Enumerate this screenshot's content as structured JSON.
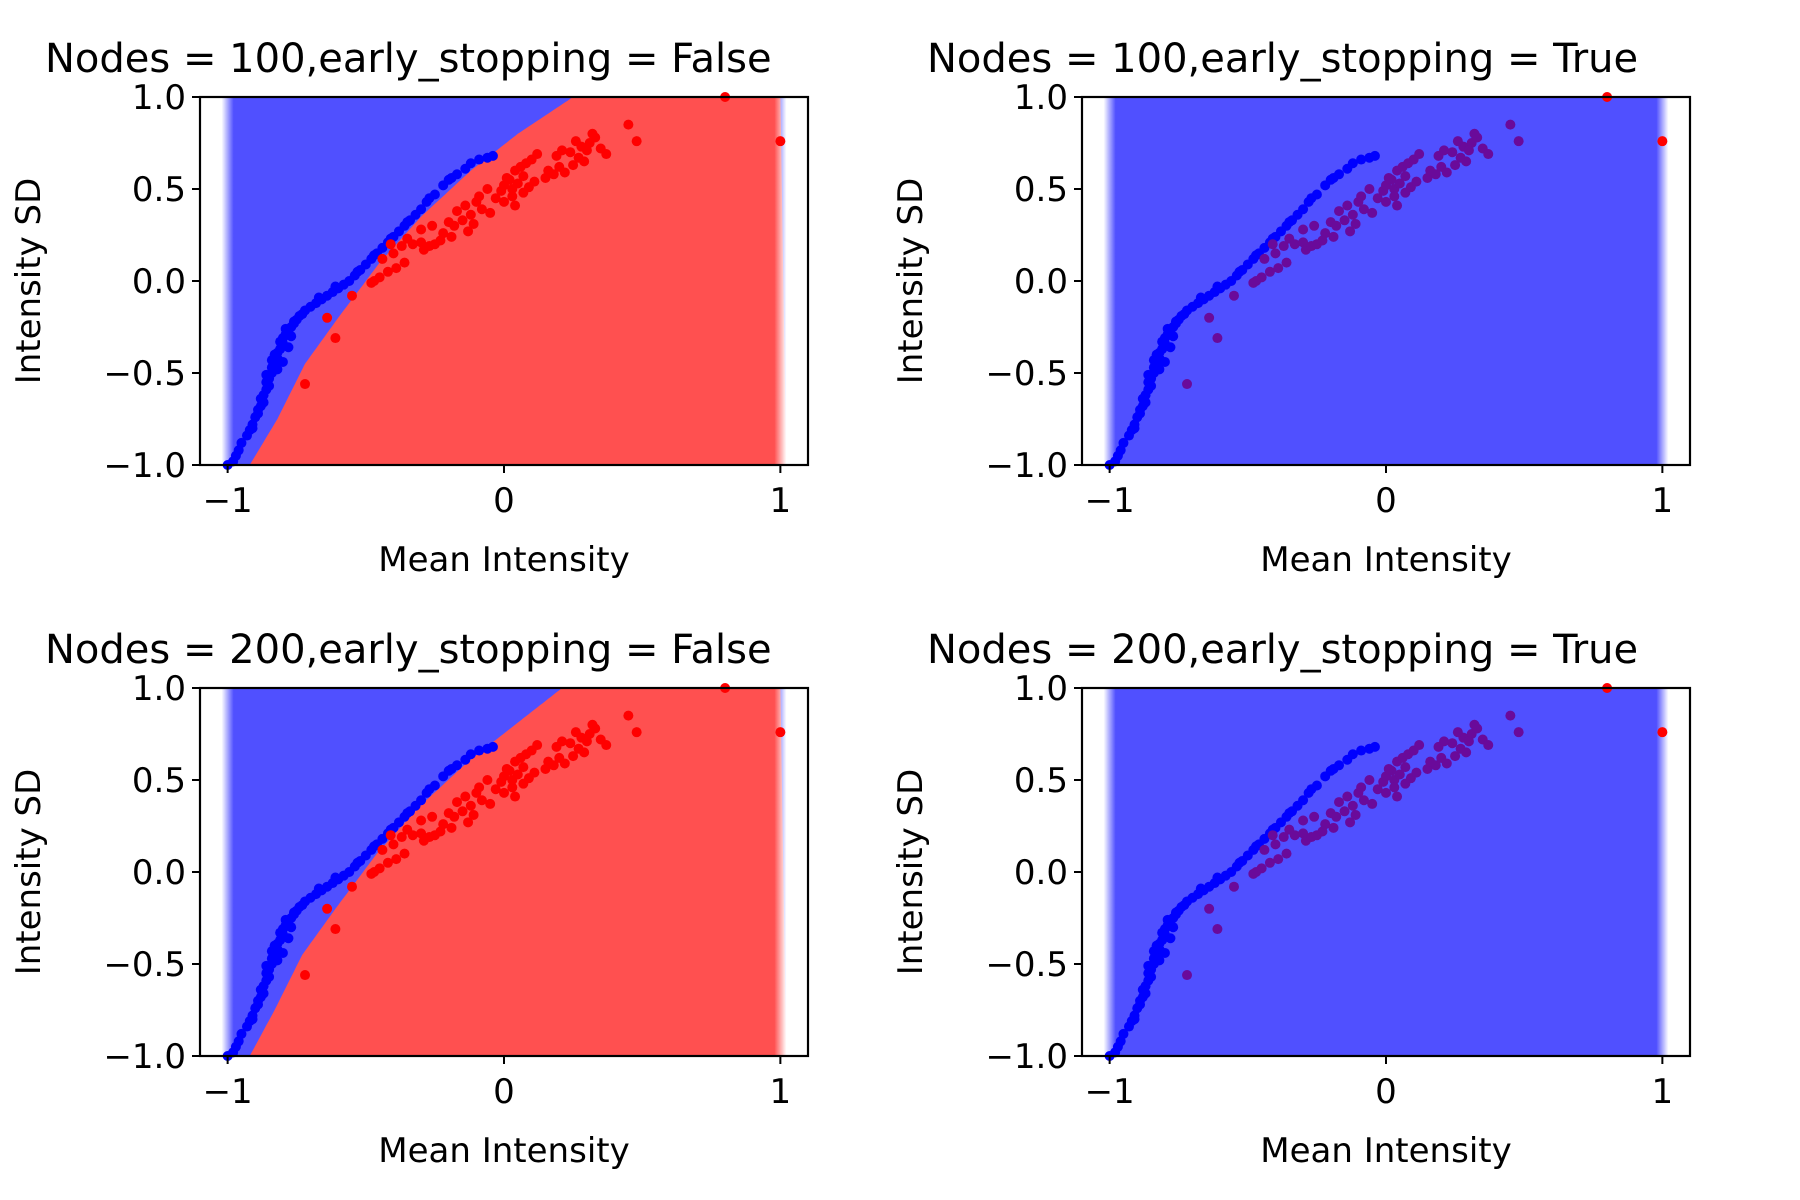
{
  "chart_data": [
    {
      "type": "scatter",
      "title": "Nodes = 100,early_stopping = False",
      "xlabel": "Mean Intensity",
      "ylabel": "Intensity SD",
      "xlim": [
        -1.1,
        1.1
      ],
      "ylim": [
        -1.0,
        1.0
      ],
      "xticks": [
        -1,
        0,
        1
      ],
      "yticks": [
        -1.0,
        -0.5,
        0.0,
        0.5,
        1.0
      ],
      "xtick_labels": [
        "−1",
        "0",
        "1"
      ],
      "ytick_labels": [
        "−1.0",
        "−0.5",
        "0.0",
        "0.5",
        "1.0"
      ],
      "background": "decision-region",
      "region_x_range": [
        -1.0,
        1.0
      ],
      "boundary": [
        [
          -0.92,
          -1.0
        ],
        [
          -0.82,
          -0.75
        ],
        [
          -0.72,
          -0.45
        ],
        [
          -0.6,
          -0.2
        ],
        [
          -0.45,
          0.1
        ],
        [
          -0.3,
          0.35
        ],
        [
          -0.12,
          0.6
        ],
        [
          0.05,
          0.8
        ],
        [
          0.25,
          1.0
        ]
      ],
      "region_colors": {
        "upper": "#5050ff",
        "lower": "#ff5050"
      },
      "point_colors": {
        "upper": "#0000ff",
        "lower": "#ff0000"
      },
      "region_class_opacity": 1
    },
    {
      "type": "scatter",
      "title": "Nodes = 100,early_stopping = True",
      "xlabel": "Mean Intensity",
      "ylabel": "Intensity SD",
      "xlim": [
        -1.1,
        1.1
      ],
      "ylim": [
        -1.0,
        1.0
      ],
      "xticks": [
        -1,
        0,
        1
      ],
      "yticks": [
        -1.0,
        -0.5,
        0.0,
        0.5,
        1.0
      ],
      "xtick_labels": [
        "−1",
        "0",
        "1"
      ],
      "ytick_labels": [
        "−1.0",
        "−0.5",
        "0.0",
        "0.5",
        "1.0"
      ],
      "background": "single-class",
      "region_x_range": [
        -1.0,
        1.0
      ],
      "region_colors": {
        "upper": "#5050ff"
      },
      "point_colors": {
        "upper": "#0000ff",
        "lower": "#ff0000",
        "lower_inside": "#6a0a9a"
      }
    },
    {
      "type": "scatter",
      "title": "Nodes = 200,early_stopping = False",
      "xlabel": "Mean Intensity",
      "ylabel": "Intensity SD",
      "xlim": [
        -1.1,
        1.1
      ],
      "ylim": [
        -1.0,
        1.0
      ],
      "xticks": [
        -1,
        0,
        1
      ],
      "yticks": [
        -1.0,
        -0.5,
        0.0,
        0.5,
        1.0
      ],
      "xtick_labels": [
        "−1",
        "0",
        "1"
      ],
      "ytick_labels": [
        "−1.0",
        "−0.5",
        "0.0",
        "0.5",
        "1.0"
      ],
      "background": "decision-region",
      "region_x_range": [
        -1.0,
        1.0
      ],
      "boundary": [
        [
          -0.92,
          -1.0
        ],
        [
          -0.83,
          -0.75
        ],
        [
          -0.73,
          -0.45
        ],
        [
          -0.61,
          -0.2
        ],
        [
          -0.46,
          0.1
        ],
        [
          -0.31,
          0.35
        ],
        [
          -0.13,
          0.6
        ],
        [
          0.04,
          0.8
        ],
        [
          0.21,
          1.0
        ]
      ],
      "region_colors": {
        "upper": "#5050ff",
        "lower": "#ff5050"
      },
      "point_colors": {
        "upper": "#0000ff",
        "lower": "#ff0000"
      }
    },
    {
      "type": "scatter",
      "title": "Nodes = 200,early_stopping = True",
      "xlabel": "Mean Intensity",
      "ylabel": "Intensity SD",
      "xlim": [
        -1.1,
        1.1
      ],
      "ylim": [
        -1.0,
        1.0
      ],
      "xticks": [
        -1,
        0,
        1
      ],
      "yticks": [
        -1.0,
        -0.5,
        0.0,
        0.5,
        1.0
      ],
      "xtick_labels": [
        "−1",
        "0",
        "1"
      ],
      "ytick_labels": [
        "−1.0",
        "−0.5",
        "0.0",
        "0.5",
        "1.0"
      ],
      "background": "single-class",
      "region_x_range": [
        -1.0,
        1.0
      ],
      "region_colors": {
        "upper": "#5050ff"
      },
      "point_colors": {
        "upper": "#0000ff",
        "lower": "#ff0000",
        "lower_inside": "#6a0a9a"
      }
    }
  ],
  "points": {
    "upper": [
      [
        -1.0,
        -1.0
      ],
      [
        -0.98,
        -0.98
      ],
      [
        -0.97,
        -0.95
      ],
      [
        -0.96,
        -0.92
      ],
      [
        -0.95,
        -0.88
      ],
      [
        -0.93,
        -0.84
      ],
      [
        -0.92,
        -0.81
      ],
      [
        -0.91,
        -0.78
      ],
      [
        -0.9,
        -0.74
      ],
      [
        -0.89,
        -0.7
      ],
      [
        -0.88,
        -0.68
      ],
      [
        -0.88,
        -0.64
      ],
      [
        -0.87,
        -0.62
      ],
      [
        -0.86,
        -0.59
      ],
      [
        -0.86,
        -0.55
      ],
      [
        -0.85,
        -0.53
      ],
      [
        -0.84,
        -0.5
      ],
      [
        -0.84,
        -0.47
      ],
      [
        -0.83,
        -0.45
      ],
      [
        -0.82,
        -0.42
      ],
      [
        -0.82,
        -0.39
      ],
      [
        -0.81,
        -0.37
      ],
      [
        -0.8,
        -0.34
      ],
      [
        -0.8,
        -0.31
      ],
      [
        -0.79,
        -0.29
      ],
      [
        -0.78,
        -0.27
      ],
      [
        -0.77,
        -0.25
      ],
      [
        -0.76,
        -0.23
      ],
      [
        -0.75,
        -0.21
      ],
      [
        -0.74,
        -0.19
      ],
      [
        -0.72,
        -0.16
      ],
      [
        -0.7,
        -0.14
      ],
      [
        -0.68,
        -0.12
      ],
      [
        -0.66,
        -0.1
      ],
      [
        -0.64,
        -0.08
      ],
      [
        -0.62,
        -0.06
      ],
      [
        -0.6,
        -0.04
      ],
      [
        -0.58,
        -0.02
      ],
      [
        -0.56,
        0.0
      ],
      [
        -0.54,
        0.03
      ],
      [
        -0.52,
        0.06
      ],
      [
        -0.5,
        0.09
      ],
      [
        -0.48,
        0.12
      ],
      [
        -0.46,
        0.15
      ],
      [
        -0.44,
        0.18
      ],
      [
        -0.42,
        0.21
      ],
      [
        -0.4,
        0.24
      ],
      [
        -0.38,
        0.27
      ],
      [
        -0.36,
        0.3
      ],
      [
        -0.34,
        0.33
      ],
      [
        -0.32,
        0.36
      ],
      [
        -0.3,
        0.39
      ],
      [
        -0.28,
        0.43
      ],
      [
        -0.25,
        0.47
      ],
      [
        -0.22,
        0.52
      ],
      [
        -0.2,
        0.55
      ],
      [
        -0.17,
        0.58
      ],
      [
        -0.14,
        0.61
      ],
      [
        -0.12,
        0.64
      ],
      [
        -0.09,
        0.66
      ],
      [
        -0.06,
        0.67
      ],
      [
        -0.04,
        0.68
      ],
      [
        -0.85,
        -0.57
      ],
      [
        -0.83,
        -0.4
      ],
      [
        -0.81,
        -0.33
      ],
      [
        -0.79,
        -0.26
      ],
      [
        -0.73,
        -0.18
      ],
      [
        -0.67,
        -0.09
      ],
      [
        -0.61,
        -0.03
      ],
      [
        -0.53,
        0.05
      ],
      [
        -0.47,
        0.14
      ],
      [
        -0.41,
        0.23
      ],
      [
        -0.35,
        0.32
      ],
      [
        -0.27,
        0.45
      ],
      [
        -0.19,
        0.56
      ],
      [
        -0.87,
        -0.66
      ],
      [
        -0.89,
        -0.72
      ],
      [
        -0.91,
        -0.8
      ],
      [
        -0.84,
        -0.43
      ],
      [
        -0.76,
        -0.22
      ],
      [
        -0.82,
        -0.48
      ],
      [
        -0.8,
        -0.44
      ],
      [
        -0.78,
        -0.36
      ],
      [
        -0.86,
        -0.51
      ],
      [
        -0.77,
        -0.3
      ]
    ],
    "lower": [
      [
        -0.72,
        -0.56
      ],
      [
        -0.61,
        -0.31
      ],
      [
        -0.64,
        -0.2
      ],
      [
        -0.55,
        -0.08
      ],
      [
        -0.48,
        -0.01
      ],
      [
        -0.47,
        0.0
      ],
      [
        -0.45,
        0.02
      ],
      [
        -0.42,
        0.05
      ],
      [
        -0.44,
        0.12
      ],
      [
        -0.4,
        0.15
      ],
      [
        -0.41,
        0.2
      ],
      [
        -0.37,
        0.19
      ],
      [
        -0.35,
        0.23
      ],
      [
        -0.33,
        0.2
      ],
      [
        -0.3,
        0.21
      ],
      [
        -0.29,
        0.17
      ],
      [
        -0.27,
        0.19
      ],
      [
        -0.25,
        0.2
      ],
      [
        -0.23,
        0.22
      ],
      [
        -0.3,
        0.28
      ],
      [
        -0.26,
        0.3
      ],
      [
        -0.22,
        0.26
      ],
      [
        -0.2,
        0.32
      ],
      [
        -0.18,
        0.3
      ],
      [
        -0.15,
        0.33
      ],
      [
        -0.13,
        0.27
      ],
      [
        -0.11,
        0.31
      ],
      [
        -0.17,
        0.38
      ],
      [
        -0.14,
        0.41
      ],
      [
        -0.1,
        0.43
      ],
      [
        -0.08,
        0.39
      ],
      [
        -0.05,
        0.37
      ],
      [
        -0.03,
        0.45
      ],
      [
        -0.01,
        0.49
      ],
      [
        0.0,
        0.52
      ],
      [
        0.02,
        0.55
      ],
      [
        0.03,
        0.5
      ],
      [
        0.05,
        0.53
      ],
      [
        0.07,
        0.57
      ],
      [
        0.04,
        0.6
      ],
      [
        0.06,
        0.62
      ],
      [
        0.08,
        0.64
      ],
      [
        0.1,
        0.66
      ],
      [
        0.12,
        0.69
      ],
      [
        0.01,
        0.56
      ],
      [
        0.03,
        0.46
      ],
      [
        0.07,
        0.48
      ],
      [
        0.09,
        0.51
      ],
      [
        0.0,
        0.43
      ],
      [
        0.04,
        0.41
      ],
      [
        0.15,
        0.56
      ],
      [
        0.18,
        0.58
      ],
      [
        0.16,
        0.6
      ],
      [
        0.2,
        0.62
      ],
      [
        0.22,
        0.59
      ],
      [
        0.25,
        0.63
      ],
      [
        0.27,
        0.67
      ],
      [
        0.29,
        0.65
      ],
      [
        0.24,
        0.7
      ],
      [
        0.28,
        0.73
      ],
      [
        0.31,
        0.75
      ],
      [
        0.33,
        0.78
      ],
      [
        0.3,
        0.71
      ],
      [
        0.35,
        0.72
      ],
      [
        0.37,
        0.69
      ],
      [
        0.21,
        0.71
      ],
      [
        0.19,
        0.68
      ],
      [
        0.26,
        0.76
      ],
      [
        0.32,
        0.8
      ],
      [
        0.45,
        0.85
      ],
      [
        0.48,
        0.76
      ],
      [
        0.8,
        1.0
      ],
      [
        1.0,
        0.76
      ],
      [
        -0.06,
        0.5
      ],
      [
        -0.09,
        0.46
      ],
      [
        -0.12,
        0.36
      ],
      [
        -0.19,
        0.24
      ],
      [
        -0.36,
        0.1
      ],
      [
        -0.39,
        0.07
      ],
      [
        0.11,
        0.54
      ]
    ]
  }
}
